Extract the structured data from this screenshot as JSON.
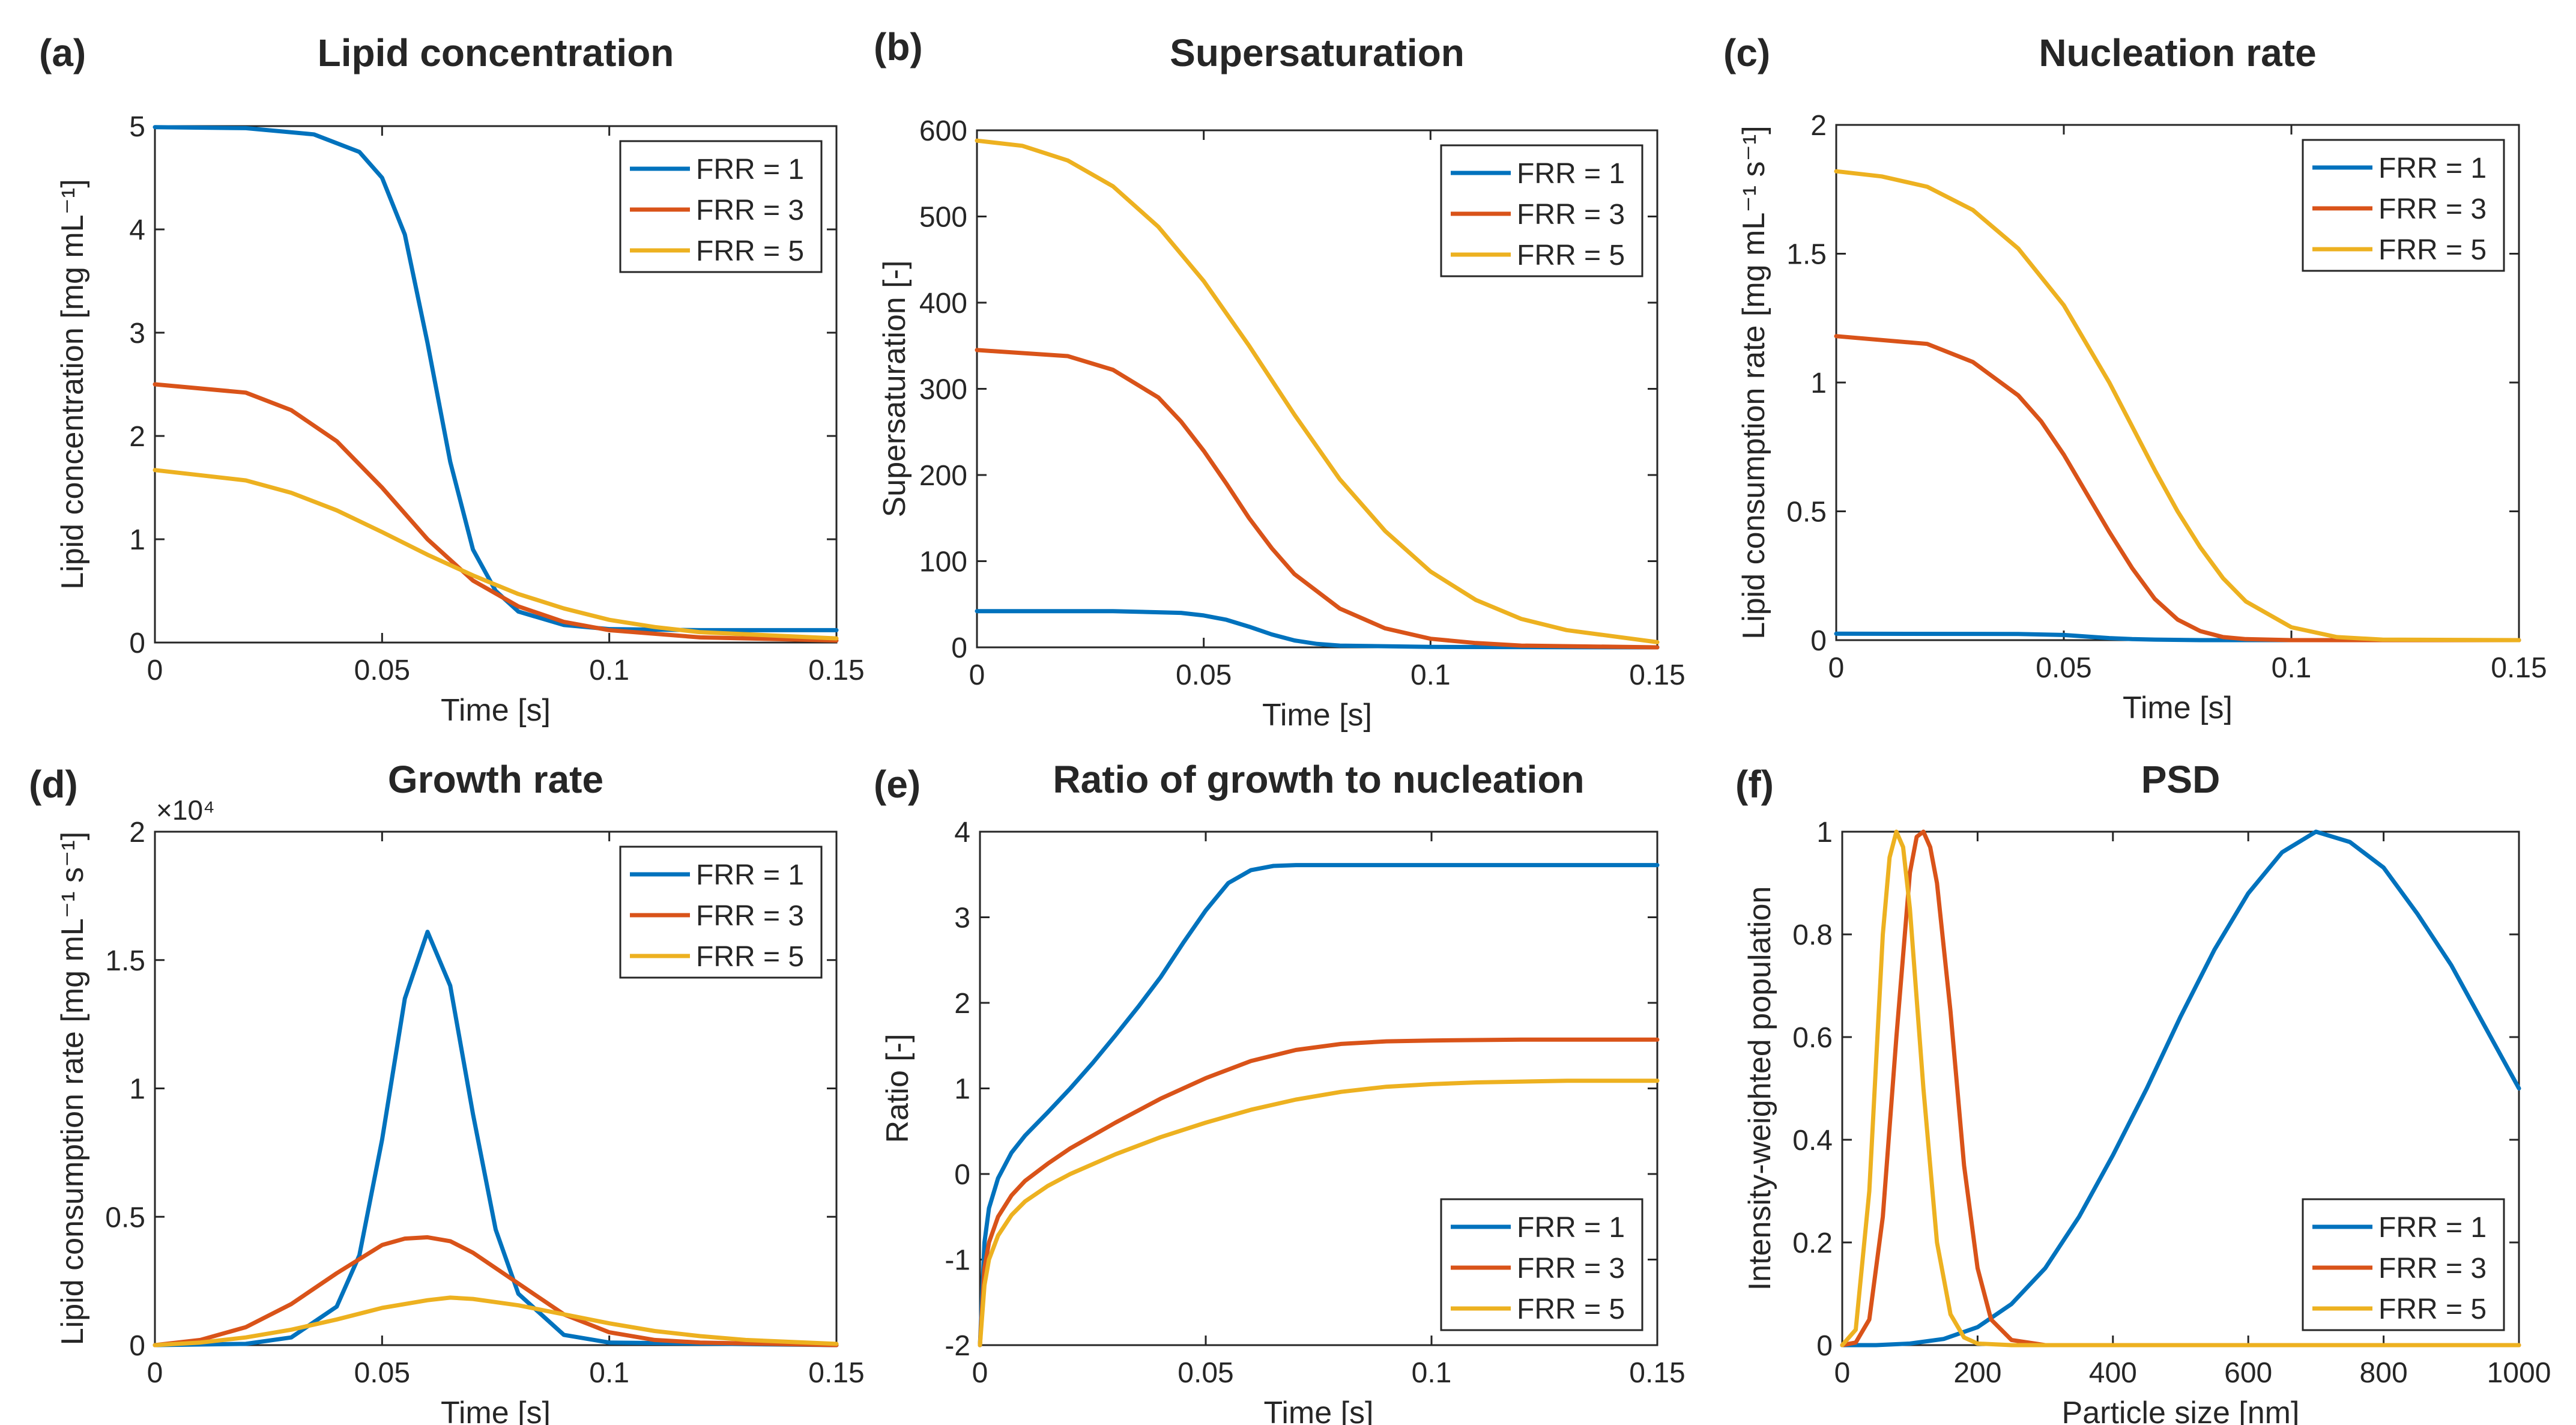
{
  "colors": {
    "frr1": "#0072BD",
    "frr3": "#D95319",
    "frr5": "#EDB120",
    "axis": "#262626"
  },
  "legend_labels": [
    "FRR = 1",
    "FRR = 3",
    "FRR = 5"
  ],
  "chart_data": [
    {
      "panel": "(a)",
      "type": "line",
      "title": "Lipid concentration",
      "xlabel": "Time [s]",
      "ylabel": "Lipid concentration [mg mL⁻¹]",
      "xlim": [
        0,
        0.15
      ],
      "ylim": [
        0,
        5
      ],
      "xticks": [
        0,
        0.05,
        0.1,
        0.15
      ],
      "xtick_labels": [
        "0",
        "0.05",
        "0.1",
        "0.15"
      ],
      "yticks": [
        0,
        1,
        2,
        3,
        4,
        5
      ],
      "ytick_labels": [
        "0",
        "1",
        "2",
        "3",
        "4",
        "5"
      ],
      "legend_position": "top-right",
      "series": [
        {
          "name": "FRR = 1",
          "x": [
            0,
            0.02,
            0.035,
            0.045,
            0.05,
            0.055,
            0.06,
            0.065,
            0.07,
            0.075,
            0.08,
            0.09,
            0.1,
            0.12,
            0.15
          ],
          "y": [
            4.99,
            4.98,
            4.92,
            4.75,
            4.5,
            3.95,
            2.9,
            1.75,
            0.9,
            0.5,
            0.3,
            0.17,
            0.13,
            0.12,
            0.12
          ]
        },
        {
          "name": "FRR = 3",
          "x": [
            0,
            0.02,
            0.03,
            0.04,
            0.05,
            0.06,
            0.07,
            0.08,
            0.09,
            0.1,
            0.12,
            0.15
          ],
          "y": [
            2.5,
            2.42,
            2.25,
            1.95,
            1.5,
            1.0,
            0.6,
            0.35,
            0.2,
            0.12,
            0.05,
            0.02
          ]
        },
        {
          "name": "FRR = 5",
          "x": [
            0,
            0.02,
            0.03,
            0.04,
            0.05,
            0.06,
            0.07,
            0.08,
            0.09,
            0.1,
            0.11,
            0.12,
            0.15
          ],
          "y": [
            1.67,
            1.57,
            1.45,
            1.28,
            1.07,
            0.85,
            0.65,
            0.47,
            0.33,
            0.22,
            0.15,
            0.1,
            0.04
          ]
        }
      ]
    },
    {
      "panel": "(b)",
      "type": "line",
      "title": "Supersaturation",
      "xlabel": "Time [s]",
      "ylabel": "Supersaturation [-]",
      "xlim": [
        0,
        0.15
      ],
      "ylim": [
        0,
        600
      ],
      "xticks": [
        0,
        0.05,
        0.1,
        0.15
      ],
      "xtick_labels": [
        "0",
        "0.05",
        "0.1",
        "0.15"
      ],
      "yticks": [
        0,
        100,
        200,
        300,
        400,
        500,
        600
      ],
      "ytick_labels": [
        "0",
        "100",
        "200",
        "300",
        "400",
        "500",
        "600"
      ],
      "legend_position": "top-right",
      "series": [
        {
          "name": "FRR = 1",
          "x": [
            0,
            0.03,
            0.045,
            0.05,
            0.055,
            0.06,
            0.065,
            0.07,
            0.075,
            0.08,
            0.1,
            0.15
          ],
          "y": [
            42,
            42,
            40,
            37,
            32,
            24,
            15,
            8,
            4,
            2,
            0.5,
            0
          ]
        },
        {
          "name": "FRR = 3",
          "x": [
            0,
            0.02,
            0.03,
            0.04,
            0.045,
            0.05,
            0.055,
            0.06,
            0.065,
            0.07,
            0.08,
            0.09,
            0.1,
            0.11,
            0.12,
            0.15
          ],
          "y": [
            345,
            338,
            322,
            290,
            262,
            228,
            190,
            150,
            115,
            85,
            45,
            22,
            10,
            5,
            2,
            0
          ]
        },
        {
          "name": "FRR = 5",
          "x": [
            0,
            0.01,
            0.02,
            0.03,
            0.04,
            0.05,
            0.06,
            0.07,
            0.08,
            0.09,
            0.1,
            0.11,
            0.12,
            0.13,
            0.15
          ],
          "y": [
            588,
            582,
            565,
            535,
            488,
            425,
            350,
            270,
            195,
            135,
            88,
            55,
            33,
            20,
            6
          ]
        }
      ]
    },
    {
      "panel": "(c)",
      "type": "line",
      "title": "Nucleation rate",
      "xlabel": "Time [s]",
      "ylabel": "Lipid consumption rate [mg mL⁻¹ s⁻¹]",
      "xlim": [
        0,
        0.15
      ],
      "ylim": [
        0,
        2
      ],
      "xticks": [
        0,
        0.05,
        0.1,
        0.15
      ],
      "xtick_labels": [
        "0",
        "0.05",
        "0.1",
        "0.15"
      ],
      "yticks": [
        0,
        0.5,
        1,
        1.5,
        2
      ],
      "ytick_labels": [
        "0",
        "0.5",
        "1",
        "1.5",
        "2"
      ],
      "legend_position": "top-right",
      "series": [
        {
          "name": "FRR = 1",
          "x": [
            0,
            0.04,
            0.05,
            0.055,
            0.06,
            0.065,
            0.07,
            0.08,
            0.15
          ],
          "y": [
            0.025,
            0.024,
            0.02,
            0.014,
            0.008,
            0.004,
            0.002,
            0,
            0
          ]
        },
        {
          "name": "FRR = 3",
          "x": [
            0,
            0.02,
            0.03,
            0.04,
            0.045,
            0.05,
            0.055,
            0.06,
            0.065,
            0.07,
            0.075,
            0.08,
            0.085,
            0.09,
            0.1,
            0.15
          ],
          "y": [
            1.18,
            1.15,
            1.08,
            0.95,
            0.85,
            0.72,
            0.57,
            0.42,
            0.28,
            0.16,
            0.08,
            0.035,
            0.012,
            0.004,
            0,
            0
          ]
        },
        {
          "name": "FRR = 5",
          "x": [
            0,
            0.01,
            0.02,
            0.03,
            0.04,
            0.05,
            0.06,
            0.065,
            0.07,
            0.075,
            0.08,
            0.085,
            0.09,
            0.1,
            0.11,
            0.12,
            0.15
          ],
          "y": [
            1.82,
            1.8,
            1.76,
            1.67,
            1.52,
            1.3,
            1.0,
            0.83,
            0.66,
            0.5,
            0.36,
            0.24,
            0.15,
            0.05,
            0.012,
            0.002,
            0
          ]
        }
      ]
    },
    {
      "panel": "(d)",
      "type": "line",
      "title": "Growth rate",
      "xlabel": "Time [s]",
      "ylabel": "Lipid consumption rate [mg mL⁻¹ s⁻¹]",
      "xlim": [
        0,
        0.15
      ],
      "ylim": [
        0,
        2
      ],
      "y_multiplier": "×10⁴",
      "xticks": [
        0,
        0.05,
        0.1,
        0.15
      ],
      "xtick_labels": [
        "0",
        "0.05",
        "0.1",
        "0.15"
      ],
      "yticks": [
        0,
        0.5,
        1,
        1.5,
        2
      ],
      "ytick_labels": [
        "0",
        "0.5",
        "1",
        "1.5",
        "2"
      ],
      "legend_position": "top-right",
      "series": [
        {
          "name": "FRR = 1",
          "x": [
            0,
            0.02,
            0.03,
            0.04,
            0.045,
            0.05,
            0.055,
            0.06,
            0.065,
            0.07,
            0.075,
            0.08,
            0.09,
            0.1,
            0.15
          ],
          "y": [
            0,
            0.005,
            0.03,
            0.15,
            0.35,
            0.8,
            1.35,
            1.61,
            1.4,
            0.9,
            0.45,
            0.2,
            0.04,
            0.01,
            0
          ]
        },
        {
          "name": "FRR = 3",
          "x": [
            0,
            0.01,
            0.02,
            0.03,
            0.04,
            0.05,
            0.055,
            0.06,
            0.065,
            0.07,
            0.08,
            0.09,
            0.1,
            0.11,
            0.12,
            0.15
          ],
          "y": [
            0,
            0.02,
            0.07,
            0.16,
            0.28,
            0.39,
            0.415,
            0.42,
            0.405,
            0.36,
            0.24,
            0.12,
            0.05,
            0.02,
            0.01,
            0
          ]
        },
        {
          "name": "FRR = 5",
          "x": [
            0,
            0.01,
            0.02,
            0.03,
            0.04,
            0.05,
            0.06,
            0.065,
            0.07,
            0.08,
            0.09,
            0.1,
            0.11,
            0.12,
            0.13,
            0.15
          ],
          "y": [
            0,
            0.01,
            0.03,
            0.06,
            0.1,
            0.145,
            0.175,
            0.185,
            0.18,
            0.155,
            0.12,
            0.085,
            0.055,
            0.035,
            0.02,
            0.005
          ]
        }
      ]
    },
    {
      "panel": "(e)",
      "type": "line",
      "title": "Ratio of growth to nucleation",
      "xlabel": "Time [s]",
      "ylabel": "Ratio [-]",
      "xlim": [
        0,
        0.15
      ],
      "ylim": [
        -2,
        4
      ],
      "xticks": [
        0,
        0.05,
        0.1,
        0.15
      ],
      "xtick_labels": [
        "0",
        "0.05",
        "0.1",
        "0.15"
      ],
      "yticks": [
        -2,
        -1,
        0,
        1,
        2,
        3,
        4
      ],
      "ytick_labels": [
        "-2",
        "-1",
        "0",
        "1",
        "2",
        "3",
        "4"
      ],
      "legend_position": "bottom-right",
      "series": [
        {
          "name": "FRR = 1",
          "x": [
            0,
            0.001,
            0.002,
            0.004,
            0.007,
            0.01,
            0.015,
            0.02,
            0.025,
            0.03,
            0.035,
            0.04,
            0.045,
            0.05,
            0.055,
            0.06,
            0.065,
            0.07,
            0.08,
            0.1,
            0.15
          ],
          "y": [
            -2,
            -0.8,
            -0.4,
            -0.05,
            0.25,
            0.45,
            0.72,
            1.0,
            1.3,
            1.62,
            1.95,
            2.3,
            2.7,
            3.08,
            3.4,
            3.55,
            3.6,
            3.61,
            3.61,
            3.61,
            3.61
          ]
        },
        {
          "name": "FRR = 3",
          "x": [
            0,
            0.001,
            0.002,
            0.004,
            0.007,
            0.01,
            0.015,
            0.02,
            0.03,
            0.04,
            0.05,
            0.06,
            0.07,
            0.08,
            0.09,
            0.1,
            0.12,
            0.15
          ],
          "y": [
            -2,
            -1.1,
            -0.8,
            -0.5,
            -0.25,
            -0.08,
            0.12,
            0.3,
            0.6,
            0.88,
            1.12,
            1.32,
            1.45,
            1.52,
            1.55,
            1.56,
            1.57,
            1.57
          ]
        },
        {
          "name": "FRR = 5",
          "x": [
            0,
            0.001,
            0.002,
            0.004,
            0.007,
            0.01,
            0.015,
            0.02,
            0.03,
            0.04,
            0.05,
            0.06,
            0.07,
            0.08,
            0.09,
            0.1,
            0.11,
            0.12,
            0.13,
            0.15
          ],
          "y": [
            -2,
            -1.3,
            -1.0,
            -0.72,
            -0.48,
            -0.32,
            -0.14,
            0.0,
            0.23,
            0.43,
            0.6,
            0.75,
            0.87,
            0.96,
            1.02,
            1.05,
            1.07,
            1.08,
            1.09,
            1.09
          ]
        }
      ]
    },
    {
      "panel": "(f)",
      "type": "line",
      "title": "PSD",
      "xlabel": "Particle size [nm]",
      "ylabel": "Intensity-weighted population",
      "xlim": [
        0,
        1000
      ],
      "ylim": [
        0,
        1
      ],
      "xticks": [
        0,
        200,
        400,
        600,
        800,
        1000
      ],
      "xtick_labels": [
        "0",
        "200",
        "400",
        "600",
        "800",
        "1000"
      ],
      "yticks": [
        0,
        0.2,
        0.4,
        0.6,
        0.8,
        1
      ],
      "ytick_labels": [
        "0",
        "0.2",
        "0.4",
        "0.6",
        "0.8",
        "1"
      ],
      "legend_position": "bottom-right",
      "series": [
        {
          "name": "FRR = 1",
          "x": [
            0,
            50,
            100,
            150,
            200,
            250,
            300,
            350,
            400,
            450,
            500,
            550,
            600,
            650,
            700,
            750,
            800,
            850,
            900,
            950,
            1000
          ],
          "y": [
            0,
            0,
            0.003,
            0.012,
            0.035,
            0.08,
            0.15,
            0.25,
            0.37,
            0.5,
            0.64,
            0.77,
            0.88,
            0.96,
            1.0,
            0.98,
            0.93,
            0.84,
            0.74,
            0.62,
            0.5
          ]
        },
        {
          "name": "FRR = 3",
          "x": [
            0,
            20,
            40,
            60,
            80,
            100,
            110,
            120,
            130,
            140,
            160,
            180,
            200,
            220,
            250,
            300,
            1000
          ],
          "y": [
            0,
            0.005,
            0.05,
            0.25,
            0.6,
            0.92,
            0.99,
            1.0,
            0.97,
            0.9,
            0.65,
            0.35,
            0.15,
            0.05,
            0.01,
            0,
            0
          ]
        },
        {
          "name": "FRR = 5",
          "x": [
            0,
            20,
            40,
            60,
            70,
            80,
            90,
            100,
            120,
            140,
            160,
            180,
            200,
            250,
            1000
          ],
          "y": [
            0,
            0.03,
            0.3,
            0.8,
            0.95,
            1.0,
            0.97,
            0.85,
            0.5,
            0.2,
            0.06,
            0.015,
            0.003,
            0,
            0
          ]
        }
      ]
    }
  ]
}
